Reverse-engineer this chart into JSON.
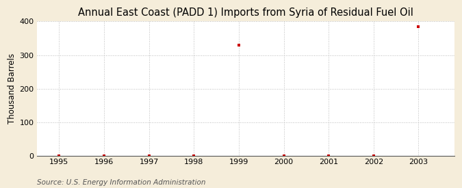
{
  "title": "Annual East Coast (PADD 1) Imports from Syria of Residual Fuel Oil",
  "ylabel": "Thousand Barrels",
  "source": "Source: U.S. Energy Information Administration",
  "figure_bg_color": "#f5edda",
  "plot_bg_color": "#ffffff",
  "years": [
    1995,
    1996,
    1997,
    1998,
    1999,
    2000,
    2001,
    2002,
    2003
  ],
  "values": [
    0,
    0,
    0,
    0,
    330,
    0,
    0,
    0,
    385
  ],
  "marker_color": "#cc0000",
  "marker_style": "s",
  "marker_size": 3,
  "xlim": [
    1994.5,
    2003.8
  ],
  "ylim": [
    0,
    400
  ],
  "yticks": [
    0,
    100,
    200,
    300,
    400
  ],
  "xticks": [
    1995,
    1996,
    1997,
    1998,
    1999,
    2000,
    2001,
    2002,
    2003
  ],
  "title_fontsize": 10.5,
  "axis_fontsize": 8.5,
  "tick_fontsize": 8,
  "source_fontsize": 7.5,
  "grid_color": "#bbbbbb",
  "grid_linestyle": ":",
  "grid_linewidth": 0.7
}
